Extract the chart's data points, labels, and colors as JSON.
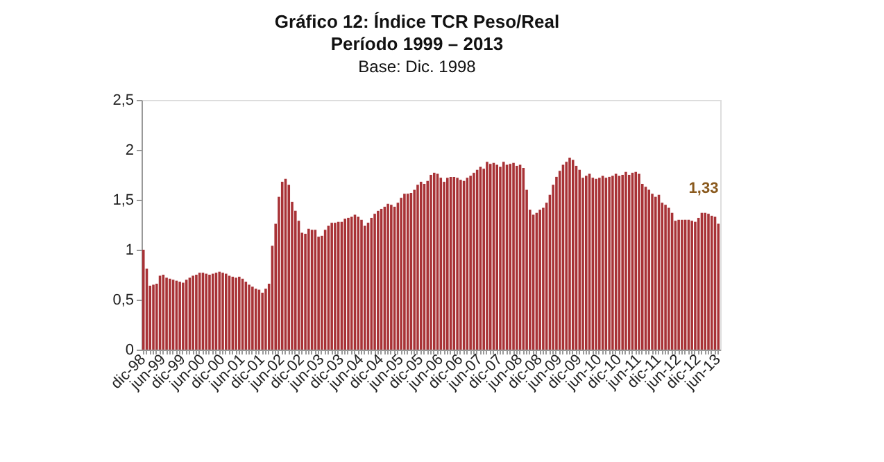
{
  "chart_data": {
    "type": "bar",
    "title": "Gráfico 12: Índice TCR Peso/Real",
    "subtitle": "Período 1999 – 2013",
    "annotations": [
      "Base: Dic. 1998",
      "1,33"
    ],
    "categories": [
      "dic-98",
      null,
      null,
      null,
      null,
      null,
      "jun-99",
      null,
      null,
      null,
      null,
      null,
      "dic-99",
      null,
      null,
      null,
      null,
      null,
      "jun-00",
      null,
      null,
      null,
      null,
      null,
      "dic-00",
      null,
      null,
      null,
      null,
      null,
      "jun-01",
      null,
      null,
      null,
      null,
      null,
      "dic-01",
      null,
      null,
      null,
      null,
      null,
      "jun-02",
      null,
      null,
      null,
      null,
      null,
      "dic-02",
      null,
      null,
      null,
      null,
      null,
      "jun-03",
      null,
      null,
      null,
      null,
      null,
      "dic-03",
      null,
      null,
      null,
      null,
      null,
      "jun-04",
      null,
      null,
      null,
      null,
      null,
      "dic-04",
      null,
      null,
      null,
      null,
      null,
      "jun-05",
      null,
      null,
      null,
      null,
      null,
      "dic-05",
      null,
      null,
      null,
      null,
      null,
      "jun-06",
      null,
      null,
      null,
      null,
      null,
      "dic-06",
      null,
      null,
      null,
      null,
      null,
      "jun-07",
      null,
      null,
      null,
      null,
      null,
      "dic-07",
      null,
      null,
      null,
      null,
      null,
      "jun-08",
      null,
      null,
      null,
      null,
      null,
      "dic-08",
      null,
      null,
      null,
      null,
      null,
      "jun-09",
      null,
      null,
      null,
      null,
      null,
      "dic-09",
      null,
      null,
      null,
      null,
      null,
      "jun-10",
      null,
      null,
      null,
      null,
      null,
      "dic-10",
      null,
      null,
      null,
      null,
      null,
      "jun-11",
      null,
      null,
      null,
      null,
      null,
      "dic-11",
      null,
      null,
      null,
      null,
      null,
      "jun-12",
      null,
      null,
      null,
      null,
      null,
      "dic-12",
      null,
      null,
      null,
      null,
      null,
      "jun-13"
    ],
    "series": [
      {
        "color": "#a83236",
        "values": [
          1.0,
          0.81,
          0.64,
          0.65,
          0.66,
          0.74,
          0.75,
          0.72,
          0.71,
          0.7,
          0.69,
          0.68,
          0.67,
          0.7,
          0.72,
          0.74,
          0.75,
          0.77,
          0.77,
          0.76,
          0.75,
          0.76,
          0.77,
          0.78,
          0.77,
          0.76,
          0.74,
          0.73,
          0.72,
          0.73,
          0.71,
          0.68,
          0.65,
          0.63,
          0.61,
          0.6,
          0.57,
          0.61,
          0.66,
          1.04,
          1.26,
          1.53,
          1.68,
          1.71,
          1.65,
          1.48,
          1.39,
          1.29,
          1.17,
          1.16,
          1.21,
          1.2,
          1.2,
          1.13,
          1.14,
          1.2,
          1.24,
          1.27,
          1.27,
          1.28,
          1.28,
          1.31,
          1.32,
          1.33,
          1.35,
          1.33,
          1.3,
          1.24,
          1.27,
          1.32,
          1.36,
          1.39,
          1.41,
          1.43,
          1.46,
          1.45,
          1.43,
          1.47,
          1.52,
          1.56,
          1.56,
          1.57,
          1.6,
          1.65,
          1.68,
          1.66,
          1.69,
          1.75,
          1.77,
          1.76,
          1.72,
          1.68,
          1.72,
          1.73,
          1.73,
          1.72,
          1.7,
          1.69,
          1.72,
          1.74,
          1.77,
          1.8,
          1.83,
          1.81,
          1.88,
          1.86,
          1.87,
          1.85,
          1.83,
          1.88,
          1.85,
          1.86,
          1.87,
          1.84,
          1.85,
          1.82,
          1.6,
          1.4,
          1.35,
          1.37,
          1.4,
          1.42,
          1.47,
          1.55,
          1.65,
          1.73,
          1.79,
          1.85,
          1.88,
          1.92,
          1.9,
          1.84,
          1.8,
          1.72,
          1.74,
          1.76,
          1.72,
          1.71,
          1.72,
          1.74,
          1.72,
          1.73,
          1.74,
          1.76,
          1.74,
          1.75,
          1.78,
          1.75,
          1.77,
          1.78,
          1.76,
          1.66,
          1.63,
          1.6,
          1.56,
          1.53,
          1.55,
          1.47,
          1.45,
          1.42,
          1.37,
          1.29,
          1.3,
          1.3,
          1.3,
          1.3,
          1.29,
          1.28,
          1.32,
          1.37,
          1.37,
          1.36,
          1.34,
          1.33,
          1.26
        ]
      }
    ],
    "ylim": [
      0,
      2.5
    ],
    "yticks": [
      0,
      {
        "value": 0.5,
        "label": "0,5"
      },
      1,
      {
        "value": 1.5,
        "label": "1,5"
      },
      2,
      {
        "value": 2.5,
        "label": "2,5"
      }
    ],
    "grid": false
  }
}
